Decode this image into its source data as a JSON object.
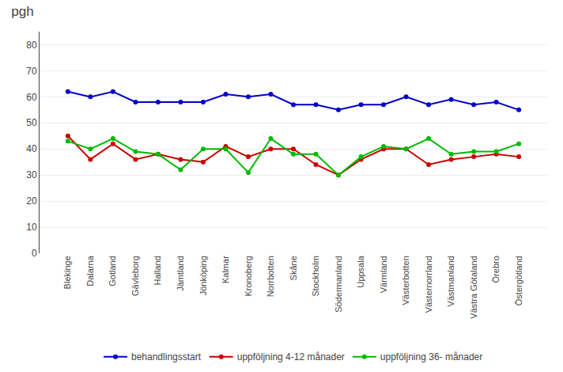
{
  "chart_data": {
    "type": "line",
    "title": "pgh",
    "categories": [
      "Blekinge",
      "Dalarna",
      "Gotland",
      "Gävleborg",
      "Halland",
      "Jämtland",
      "Jönköping",
      "Kalmar",
      "Kronoberg",
      "Norrbotten",
      "Skåne",
      "Stockholm",
      "Södermanland",
      "Uppsala",
      "Värmland",
      "Västerbotten",
      "Västernorrland",
      "Västmanland",
      "Västra Götaland",
      "Örebro",
      "Östergötland"
    ],
    "series": [
      {
        "name": "behandlingsstart",
        "color": "#0000cc",
        "values": [
          62,
          60,
          62,
          58,
          58,
          58,
          58,
          61,
          60,
          61,
          57,
          57,
          55,
          57,
          57,
          60,
          57,
          59,
          57,
          58,
          55
        ]
      },
      {
        "name": "uppföljning 4-12 månader",
        "color": "#cc0000",
        "values": [
          45,
          36,
          42,
          36,
          38,
          36,
          35,
          41,
          37,
          40,
          40,
          34,
          30,
          36,
          40,
          40,
          34,
          36,
          37,
          38,
          37
        ]
      },
      {
        "name": "uppföljning 36- månader",
        "color": "#00bb00",
        "values": [
          43,
          40,
          44,
          39,
          38,
          32,
          40,
          40,
          31,
          44,
          38,
          38,
          30,
          37,
          41,
          40,
          44,
          38,
          39,
          39,
          42
        ]
      }
    ],
    "ylim": [
      0,
      85
    ],
    "yticks": [
      0,
      10,
      20,
      30,
      40,
      50,
      60,
      70,
      80
    ],
    "grid": true,
    "legend": "bottom",
    "marker": "circle"
  }
}
